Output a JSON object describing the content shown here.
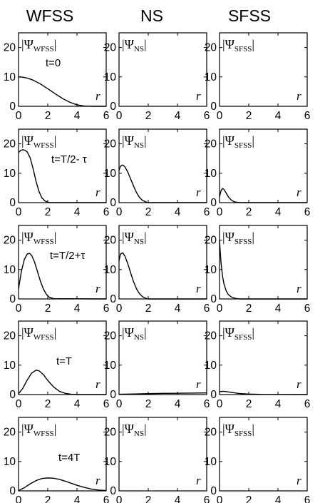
{
  "chart_data": {
    "type": "line",
    "layout": "grid 5 rows x 3 columns of small multiples",
    "columns": [
      "WFSS",
      "NS",
      "SFSS"
    ],
    "x_axis": {
      "label": "r",
      "lim": [
        0,
        6
      ],
      "ticks": [
        "0",
        "2",
        "4",
        "6"
      ]
    },
    "y_axis": {
      "lim": [
        0,
        25
      ],
      "ticks": [
        "0",
        "10",
        "20"
      ]
    },
    "grid": false,
    "rows": [
      {
        "time_label": "t=0",
        "panels": [
          {
            "label_main": "|Ψ",
            "label_sub": "WFSS",
            "label_end": "|",
            "x": [
              0,
              0.3,
              0.6,
              1.0,
              1.5,
              2.0,
              2.5,
              3.0,
              3.5,
              4.0,
              4.5,
              5.0,
              6.0
            ],
            "y": [
              10,
              9.9,
              9.6,
              8.9,
              7.6,
              6.0,
              4.3,
              2.7,
              1.4,
              0.5,
              0.1,
              0,
              0
            ]
          },
          {
            "label_main": "|Ψ",
            "label_sub": "NS",
            "label_end": "|",
            "x": [],
            "y": []
          },
          {
            "label_main": "|Ψ",
            "label_sub": "SFSS",
            "label_end": "|",
            "x": [],
            "y": []
          }
        ]
      },
      {
        "time_label": "t=T/2- τ",
        "panels": [
          {
            "label_main": "|Ψ",
            "label_sub": "WFSS",
            "label_end": "|",
            "x": [
              0,
              0.15,
              0.3,
              0.45,
              0.6,
              0.8,
              1.0,
              1.2,
              1.4,
              1.6,
              1.8,
              2.0,
              2.2,
              6.0
            ],
            "y": [
              17,
              17.8,
              18.0,
              17.8,
              17.2,
              15.2,
              11.5,
              7.2,
              3.8,
              1.6,
              0.6,
              0.15,
              0,
              0
            ]
          },
          {
            "label_main": "|Ψ",
            "label_sub": "NS",
            "label_end": "|",
            "x": [
              0,
              0.1,
              0.25,
              0.4,
              0.6,
              0.8,
              1.0,
              1.2,
              1.4,
              1.6,
              1.8,
              2.0,
              6.0
            ],
            "y": [
              11,
              12.4,
              12.8,
              12.2,
              10.4,
              8.0,
              5.6,
              3.4,
              1.8,
              0.8,
              0.3,
              0,
              0
            ]
          },
          {
            "label_main": "|Ψ",
            "label_sub": "SFSS",
            "label_end": "|",
            "x": [
              0,
              0.1,
              0.2,
              0.3,
              0.45,
              0.6,
              0.8,
              1.0,
              1.2,
              1.4,
              6.0
            ],
            "y": [
              2.0,
              4.0,
              4.8,
              4.5,
              3.3,
              2.0,
              0.9,
              0.3,
              0.1,
              0,
              0
            ]
          }
        ]
      },
      {
        "time_label": "t=T/2+τ",
        "panels": [
          {
            "label_main": "|Ψ",
            "label_sub": "WFSS",
            "label_end": "|",
            "x": [
              0,
              0.2,
              0.4,
              0.6,
              0.75,
              0.9,
              1.1,
              1.3,
              1.5,
              1.7,
              1.9,
              2.1,
              2.4,
              6.0
            ],
            "y": [
              3.5,
              9.5,
              13.5,
              15.3,
              15.5,
              14.8,
              12.5,
              9.3,
              6.0,
              3.4,
              1.6,
              0.6,
              0.1,
              0
            ]
          },
          {
            "label_main": "|Ψ",
            "label_sub": "NS",
            "label_end": "|",
            "x": [
              0,
              0.1,
              0.25,
              0.4,
              0.6,
              0.8,
              1.0,
              1.2,
              1.4,
              1.6,
              1.8,
              2.0,
              6.0
            ],
            "y": [
              13,
              15.3,
              15.7,
              14.6,
              12.0,
              8.8,
              5.8,
              3.4,
              1.8,
              0.8,
              0.3,
              0,
              0
            ]
          },
          {
            "label_main": "|Ψ",
            "label_sub": "SFSS",
            "label_end": "|",
            "x": [
              0,
              0.05,
              0.1,
              0.2,
              0.3,
              0.45,
              0.6,
              0.8,
              1.0,
              1.2,
              1.4,
              6.0
            ],
            "y": [
              20,
              16,
              12.5,
              8.0,
              5.2,
              2.8,
              1.5,
              0.7,
              0.3,
              0.1,
              0,
              0
            ]
          }
        ]
      },
      {
        "time_label": "t=T",
        "panels": [
          {
            "label_main": "|Ψ",
            "label_sub": "WFSS",
            "label_end": "|",
            "x": [
              0,
              0.3,
              0.6,
              0.9,
              1.2,
              1.4,
              1.7,
              2.0,
              2.4,
              2.8,
              3.2,
              3.6,
              4.0,
              6.0
            ],
            "y": [
              0.3,
              2.2,
              5.0,
              7.3,
              8.3,
              8.1,
              6.8,
              4.8,
              2.6,
              1.1,
              0.4,
              0.1,
              0,
              0
            ]
          },
          {
            "label_main": "|Ψ",
            "label_sub": "NS",
            "label_end": "|",
            "x": [
              0,
              1,
              2,
              3,
              4,
              5,
              6
            ],
            "y": [
              0.1,
              0.2,
              0.3,
              0.4,
              0.45,
              0.5,
              0.55
            ]
          },
          {
            "label_main": "|Ψ",
            "label_sub": "SFSS",
            "label_end": "|",
            "x": [
              0,
              0.3,
              0.6,
              1.0,
              1.5,
              2.0,
              3.0,
              6.0
            ],
            "y": [
              1.0,
              1.1,
              0.9,
              0.6,
              0.3,
              0.15,
              0.05,
              0
            ]
          }
        ]
      },
      {
        "time_label": "t=4T",
        "panels": [
          {
            "label_main": "|Ψ",
            "label_sub": "WFSS",
            "label_end": "|",
            "x": [
              0,
              0.4,
              0.8,
              1.2,
              1.6,
              2.0,
              2.4,
              2.8,
              3.2,
              3.6,
              4.0,
              4.5,
              5.0,
              5.5,
              6.0
            ],
            "y": [
              0.1,
              1.1,
              2.4,
              3.5,
              4.2,
              4.4,
              4.3,
              3.9,
              3.3,
              2.6,
              1.9,
              1.2,
              0.6,
              0.25,
              0.1
            ]
          },
          {
            "label_main": "|Ψ",
            "label_sub": "NS",
            "label_end": "|",
            "x": [],
            "y": []
          },
          {
            "label_main": "|Ψ",
            "label_sub": "SFSS",
            "label_end": "|",
            "x": [],
            "y": []
          }
        ]
      }
    ]
  }
}
